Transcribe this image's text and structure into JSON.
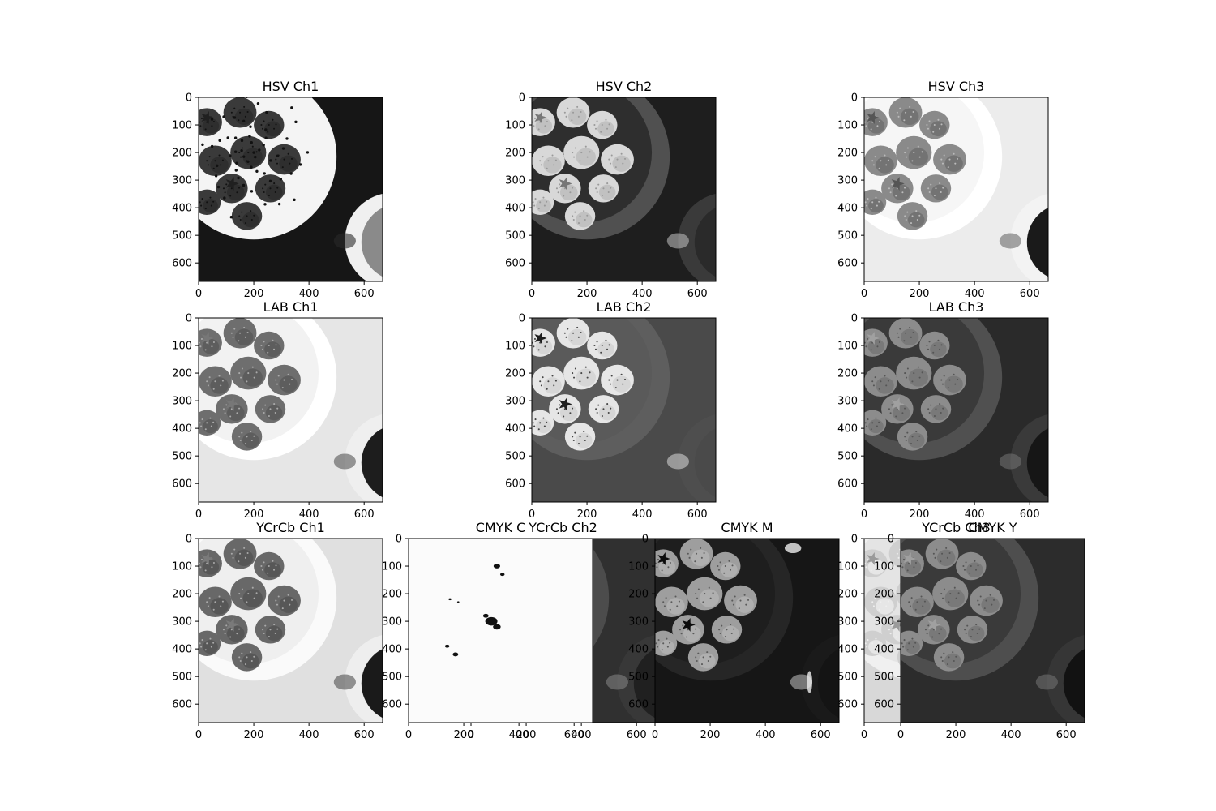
{
  "chart_data": [
    {
      "type": "image",
      "title": "HSV Ch1",
      "image": "hsv-hue",
      "xlim": [
        0,
        667
      ],
      "ylim": [
        0,
        667
      ],
      "xticks": [
        "0",
        "200",
        "400",
        "600"
      ],
      "yticks": [
        "0",
        "100",
        "200",
        "300",
        "400",
        "500",
        "600"
      ]
    },
    {
      "type": "image",
      "title": "HSV Ch2",
      "image": "hsv-saturation",
      "xlim": [
        0,
        667
      ],
      "ylim": [
        0,
        667
      ],
      "xticks": [
        "0",
        "200",
        "400",
        "600"
      ],
      "yticks": [
        "0",
        "100",
        "200",
        "300",
        "400",
        "500",
        "600"
      ]
    },
    {
      "type": "image",
      "title": "HSV Ch3",
      "image": "hsv-value",
      "xlim": [
        0,
        667
      ],
      "ylim": [
        0,
        667
      ],
      "xticks": [
        "0",
        "200",
        "400",
        "600"
      ],
      "yticks": [
        "0",
        "100",
        "200",
        "300",
        "400",
        "500",
        "600"
      ]
    },
    {
      "type": "image",
      "title": "LAB Ch1",
      "image": "lab-lightness",
      "xlim": [
        0,
        667
      ],
      "ylim": [
        0,
        667
      ],
      "xticks": [
        "0",
        "200",
        "400",
        "600"
      ],
      "yticks": [
        "0",
        "100",
        "200",
        "300",
        "400",
        "500",
        "600"
      ]
    },
    {
      "type": "image",
      "title": "LAB Ch2",
      "image": "lab-a",
      "xlim": [
        0,
        667
      ],
      "ylim": [
        0,
        667
      ],
      "xticks": [
        "0",
        "200",
        "400",
        "600"
      ],
      "yticks": [
        "0",
        "100",
        "200",
        "300",
        "400",
        "500",
        "600"
      ]
    },
    {
      "type": "image",
      "title": "LAB Ch3",
      "image": "lab-b",
      "xlim": [
        0,
        667
      ],
      "ylim": [
        0,
        667
      ],
      "xticks": [
        "0",
        "200",
        "400",
        "600"
      ],
      "yticks": [
        "0",
        "100",
        "200",
        "300",
        "400",
        "500",
        "600"
      ]
    },
    {
      "type": "image",
      "title": "YCrCb Ch1",
      "image": "ycrcb-y",
      "xlim": [
        0,
        667
      ],
      "ylim": [
        0,
        667
      ],
      "xticks": [
        "0",
        "200",
        "400",
        "600"
      ],
      "yticks": [
        "0",
        "100",
        "200",
        "300",
        "400",
        "500",
        "600"
      ]
    },
    {
      "type": "image",
      "title": "YCrCb Ch2",
      "image": "ycrcb-cr",
      "xlim": [
        0,
        667
      ],
      "ylim": [
        0,
        667
      ],
      "xticks": [
        "0",
        "200",
        "400",
        "600"
      ],
      "yticks": []
    },
    {
      "type": "image",
      "title": "YCrCb Ch3",
      "image": "ycrcb-cb",
      "xlim": [
        0,
        667
      ],
      "ylim": [
        0,
        667
      ],
      "xticks": [
        "0"
      ],
      "yticks": [
        "0",
        "100",
        "200",
        "300",
        "400",
        "500",
        "600"
      ]
    },
    {
      "type": "image",
      "title": "CMYK C",
      "image": "cmyk-c",
      "xlim": [
        0,
        667
      ],
      "ylim": [
        0,
        667
      ],
      "xticks": [
        "0",
        "200",
        "400",
        "600"
      ],
      "yticks": [
        "0",
        "100",
        "200",
        "300",
        "400",
        "500",
        "600"
      ]
    },
    {
      "type": "image",
      "title": "CMYK M",
      "image": "cmyk-m",
      "xlim": [
        0,
        667
      ],
      "ylim": [
        0,
        667
      ],
      "xticks": [
        "0",
        "200",
        "400",
        "600"
      ],
      "yticks": [
        "0",
        "100",
        "200",
        "300",
        "400",
        "500",
        "600"
      ]
    },
    {
      "type": "image",
      "title": "CMYK Y",
      "image": "cmyk-y",
      "xlim": [
        0,
        667
      ],
      "ylim": [
        0,
        667
      ],
      "xticks": [
        "0",
        "200",
        "400",
        "600"
      ],
      "yticks": [
        "0",
        "100",
        "200",
        "300",
        "400",
        "500",
        "600"
      ]
    }
  ]
}
